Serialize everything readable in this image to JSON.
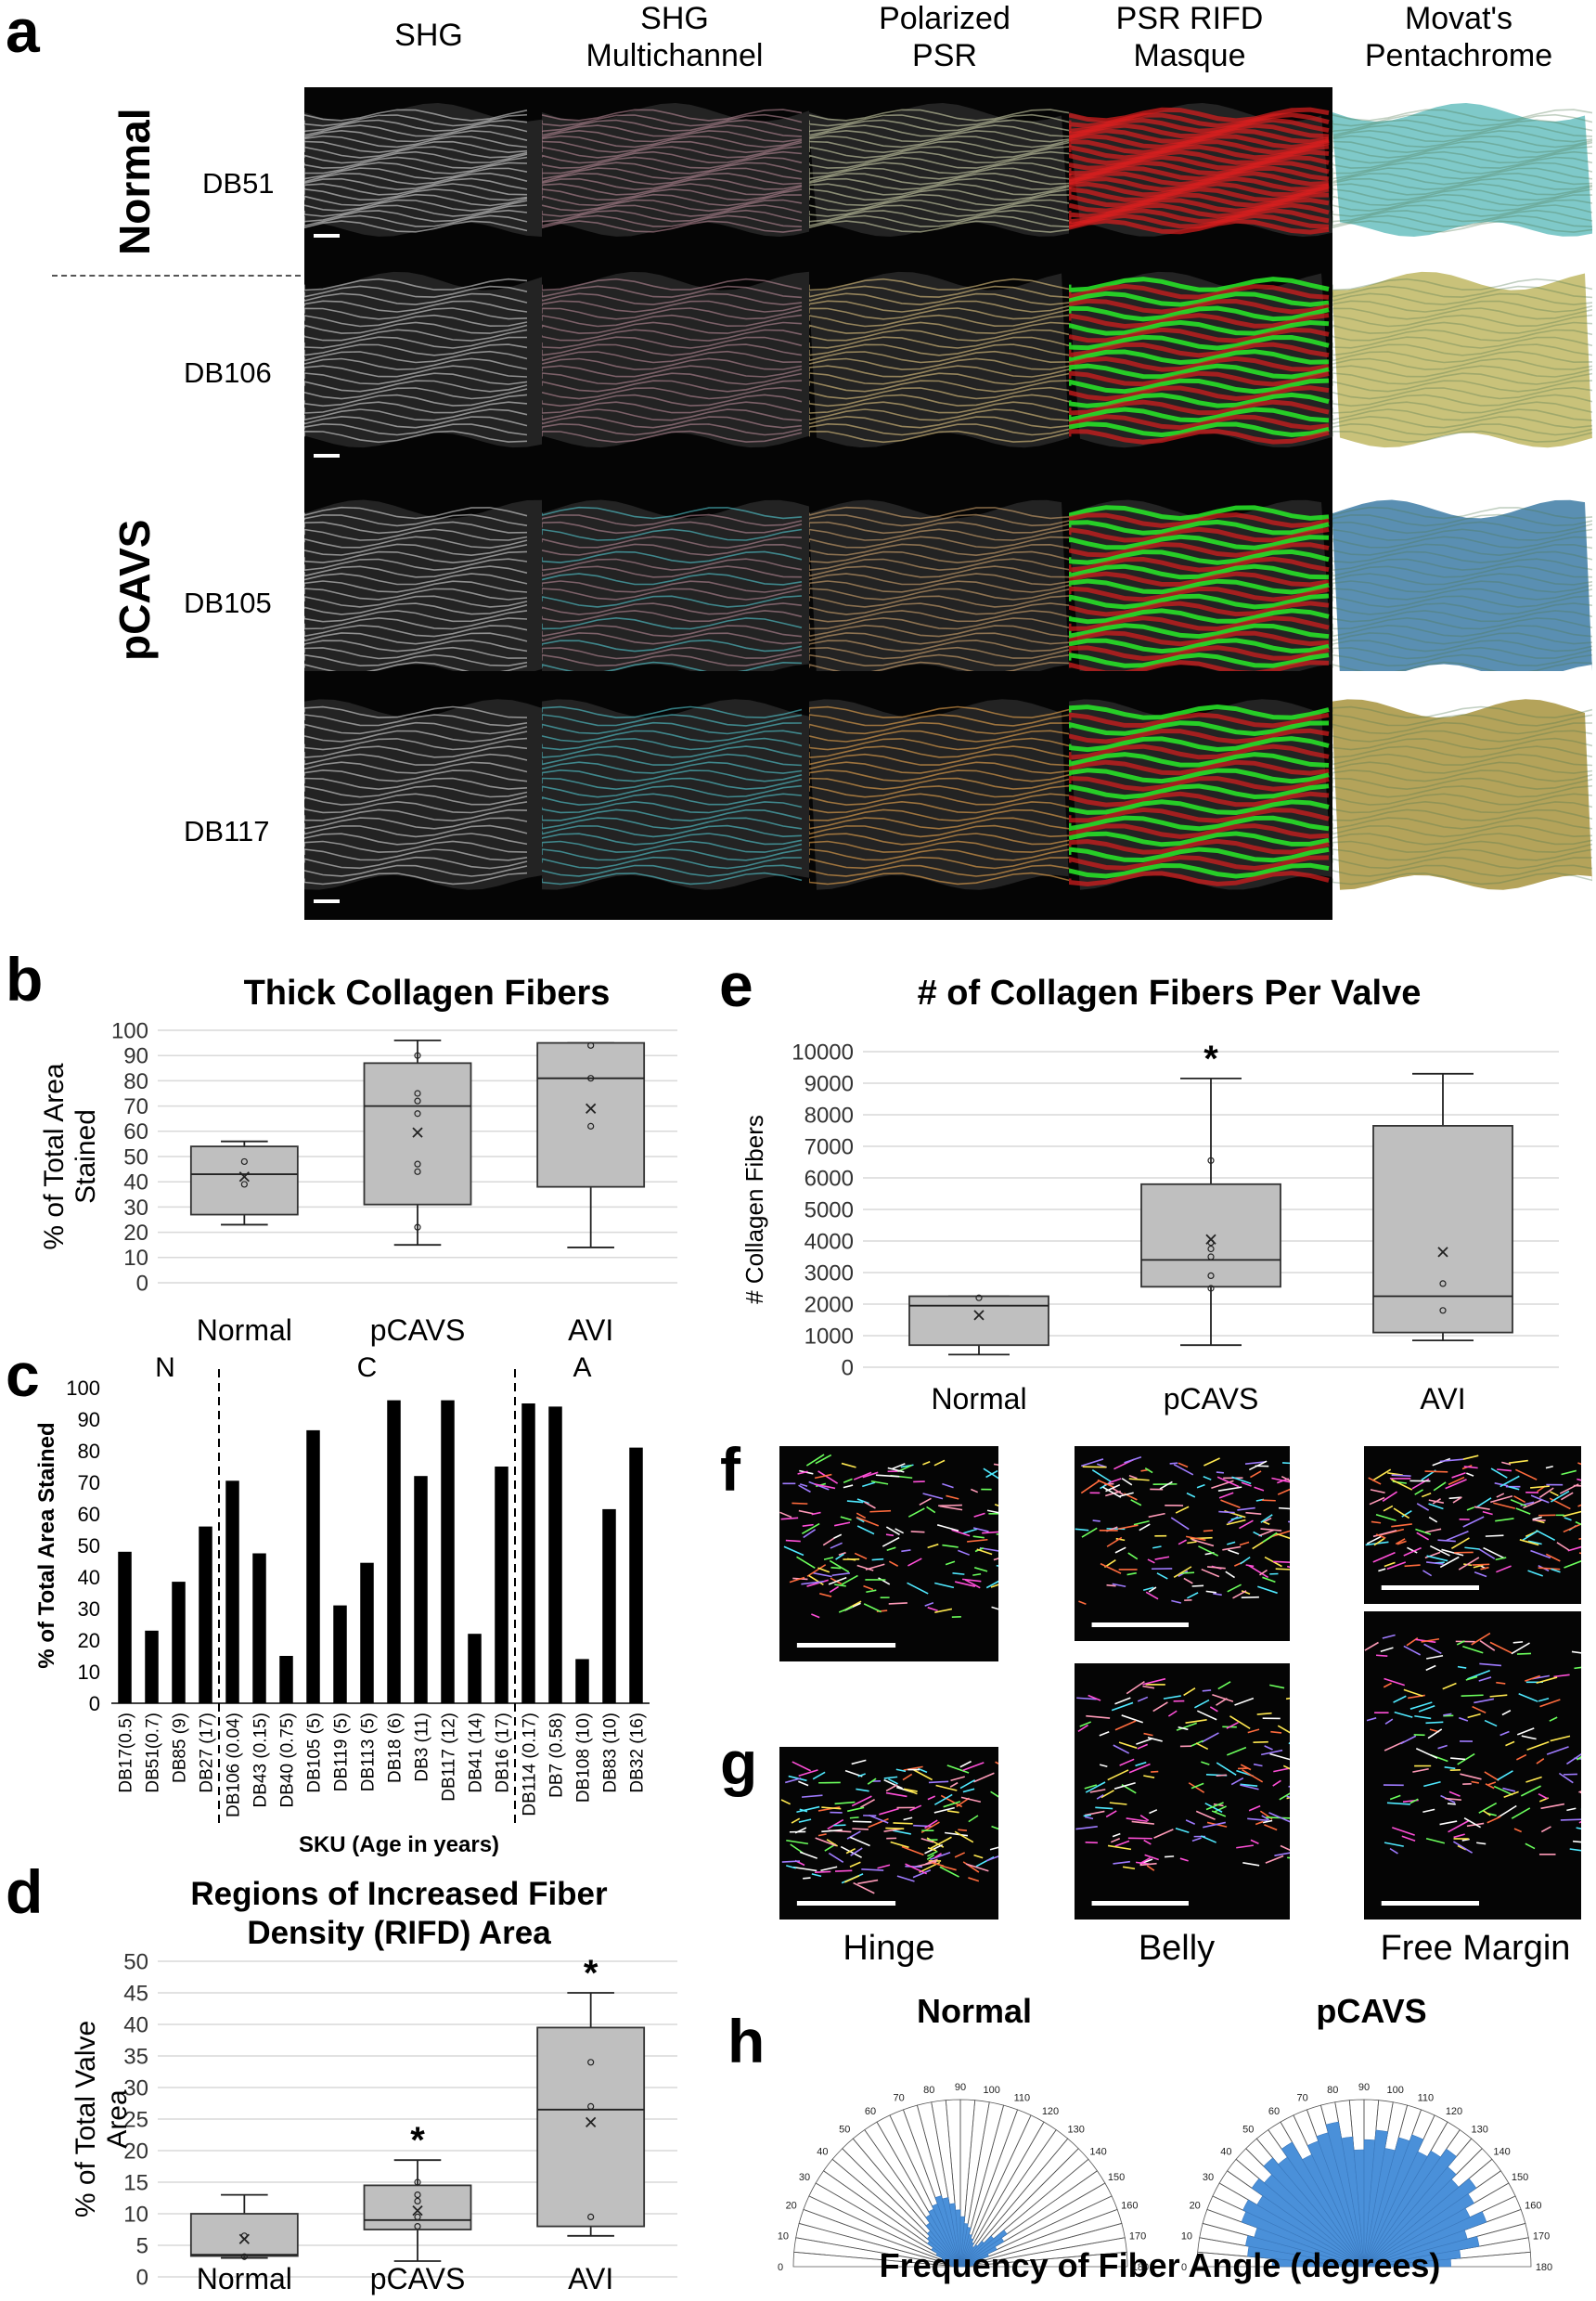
{
  "panel_letters": {
    "a": "a",
    "b": "b",
    "c": "c",
    "d": "d",
    "e": "e",
    "f": "f",
    "g": "g",
    "h": "h"
  },
  "panel_a": {
    "columns": [
      "SHG",
      "SHG\nMultichannel",
      "Polarized\nPSR",
      "PSR RIFD\nMasque",
      "Movat's\nPentachrome"
    ],
    "groups": {
      "normal": "Normal",
      "pcavs": "pCAVS"
    },
    "rows": [
      "DB51",
      "DB106",
      "DB105",
      "DB117"
    ]
  },
  "panel_fg": {
    "columns": [
      "Hinge",
      "Belly",
      "Free Margin"
    ]
  },
  "panel_h": {
    "normal_title": "Normal",
    "pcavs_title": "pCAVS",
    "xlabel": "Frequency of Fiber Angle (degrees)",
    "angle_labels": [
      "0",
      "10",
      "20",
      "30",
      "40",
      "50",
      "60",
      "70",
      "80",
      "90",
      "100",
      "110",
      "120",
      "130",
      "140",
      "150",
      "160",
      "170",
      "180"
    ]
  },
  "chart_data": [
    {
      "id": "b",
      "type": "box",
      "title": "Thick Collagen Fibers",
      "ylabel": "% of Total Area\nStained",
      "categories": [
        "Normal",
        "pCAVS",
        "AVI"
      ],
      "ylim": [
        0,
        100
      ],
      "yticks": [
        0,
        10,
        20,
        30,
        40,
        50,
        60,
        70,
        80,
        90,
        100
      ],
      "boxes": [
        {
          "min": 23,
          "q1": 27,
          "median": 43,
          "q3": 54,
          "max": 56,
          "mean": 42,
          "points": [
            39,
            48
          ]
        },
        {
          "min": 15,
          "q1": 31,
          "median": 70,
          "q3": 87,
          "max": 96,
          "mean": 59.5,
          "points": [
            22,
            44,
            47,
            67,
            72,
            75,
            90
          ]
        },
        {
          "min": 14,
          "q1": 38,
          "median": 81,
          "q3": 95,
          "max": 95,
          "mean": 69,
          "points": [
            62,
            81,
            94
          ]
        }
      ]
    },
    {
      "id": "c",
      "type": "bar",
      "ylabel": "% of Total Area Stained",
      "xlabel": "SKU (Age in years)",
      "group_labels": [
        "N",
        "C",
        "A"
      ],
      "ylim": [
        0,
        100
      ],
      "yticks": [
        0,
        10,
        20,
        30,
        40,
        50,
        60,
        70,
        80,
        90,
        100
      ],
      "categories": [
        "DB17(0.5)",
        "DB51(0.7)",
        "DB85 (9)",
        "DB27 (17)",
        "DB106 (0.04)",
        "DB43 (0.15)",
        "DB40 (0.75)",
        "DB105 (5)",
        "DB119 (5)",
        "DB113 (5)",
        "DB18 (6)",
        "DB3 (11)",
        "DB117 (12)",
        "DB41 (14)",
        "DB16 (17)",
        "DB114 (0.17)",
        "DB7 (0.58)",
        "DB108 (10)",
        "DB83 (10)",
        "DB32 (16)"
      ],
      "values": [
        48,
        23,
        38.5,
        56,
        70.5,
        47.5,
        15,
        86.5,
        31,
        44.5,
        96,
        72,
        96,
        22,
        75,
        95,
        94,
        14,
        61.5,
        81
      ]
    },
    {
      "id": "d",
      "type": "box",
      "title": "Regions of Increased Fiber\nDensity (RIFD) Area",
      "ylabel": "% of Total Valve\nArea",
      "categories": [
        "Normal",
        "pCAVS",
        "AVI"
      ],
      "ylim": [
        0,
        50
      ],
      "yticks": [
        0,
        5,
        10,
        15,
        20,
        25,
        30,
        35,
        40,
        45,
        50
      ],
      "significance": [
        "",
        "*",
        "*"
      ],
      "boxes": [
        {
          "min": 3,
          "q1": 3.3,
          "median": 3.5,
          "q3": 10,
          "max": 13,
          "mean": 6,
          "points": [
            3.2,
            6.5
          ]
        },
        {
          "min": 2.5,
          "q1": 7.5,
          "median": 9,
          "q3": 14.5,
          "max": 18.5,
          "mean": 10.5,
          "points": [
            8,
            9.5,
            12,
            13,
            15
          ]
        },
        {
          "min": 6.5,
          "q1": 8,
          "median": 26.5,
          "q3": 39.5,
          "max": 45,
          "mean": 24.5,
          "points": [
            9.5,
            27,
            34
          ]
        }
      ]
    },
    {
      "id": "e",
      "type": "box",
      "title": "# of Collagen Fibers Per Valve",
      "ylabel": "# Collagen Fibers",
      "categories": [
        "Normal",
        "pCAVS",
        "AVI"
      ],
      "ylim": [
        0,
        10000
      ],
      "yticks": [
        0,
        1000,
        2000,
        3000,
        4000,
        5000,
        6000,
        7000,
        8000,
        9000,
        10000
      ],
      "significance": [
        "",
        "*",
        ""
      ],
      "boxes": [
        {
          "min": 400,
          "q1": 700,
          "median": 1950,
          "q3": 2250,
          "max": 2250,
          "mean": 1650,
          "points": [
            2200
          ]
        },
        {
          "min": 700,
          "q1": 2550,
          "median": 3400,
          "q3": 5800,
          "max": 9150,
          "mean": 4050,
          "points": [
            2500,
            2900,
            3500,
            3750,
            3950,
            6550
          ]
        },
        {
          "min": 850,
          "q1": 1100,
          "median": 2250,
          "q3": 7650,
          "max": 9300,
          "mean": 3650,
          "points": [
            1800,
            2650
          ]
        }
      ]
    },
    {
      "id": "h",
      "type": "polar-histogram",
      "series": [
        {
          "name": "Normal",
          "values": [
            0.05,
            0.06,
            0.07,
            0.1,
            0.12,
            0.16,
            0.2,
            0.24,
            0.26,
            0.28,
            0.32,
            0.36,
            0.38,
            0.4,
            0.44,
            0.42,
            0.38,
            0.34,
            0.3,
            0.26,
            0.24,
            0.2,
            0.18,
            0.16,
            0.14,
            0.16,
            0.2,
            0.26,
            0.34,
            0.3,
            0.24,
            0.18,
            0.14,
            0.1,
            0.08,
            0.06
          ]
        },
        {
          "name": "pCAVS",
          "values": [
            0.55,
            0.7,
            0.72,
            0.68,
            0.78,
            0.8,
            0.74,
            0.82,
            0.78,
            0.85,
            0.8,
            0.86,
            0.74,
            0.8,
            0.83,
            0.88,
            0.78,
            0.7,
            0.76,
            0.82,
            0.72,
            0.8,
            0.84,
            0.76,
            0.8,
            0.86,
            0.78,
            0.74,
            0.82,
            0.76,
            0.7,
            0.78,
            0.64,
            0.7,
            0.58,
            0.52
          ]
        }
      ]
    }
  ]
}
